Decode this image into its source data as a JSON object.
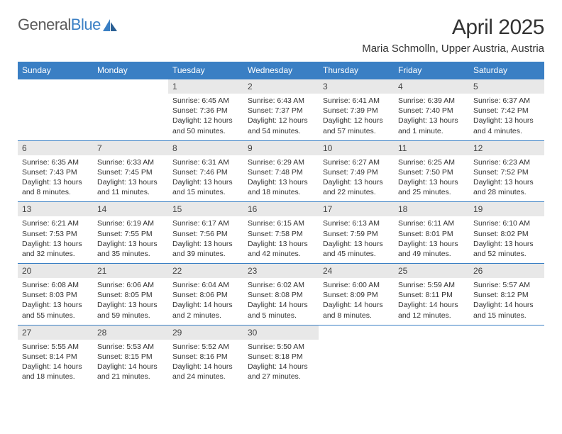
{
  "logo": {
    "text1": "General",
    "text2": "Blue"
  },
  "title": "April 2025",
  "location": "Maria Schmolln, Upper Austria, Austria",
  "colors": {
    "header_bg": "#3a7fc4",
    "header_text": "#ffffff",
    "daynum_bg": "#e8e8e8",
    "border": "#3a7fc4",
    "text": "#333333",
    "logo_gray": "#5a5a5a",
    "logo_blue": "#3a7fc4"
  },
  "weekdays": [
    "Sunday",
    "Monday",
    "Tuesday",
    "Wednesday",
    "Thursday",
    "Friday",
    "Saturday"
  ],
  "weeks": [
    [
      null,
      null,
      {
        "d": "1",
        "sr": "Sunrise: 6:45 AM",
        "ss": "Sunset: 7:36 PM",
        "dl1": "Daylight: 12 hours",
        "dl2": "and 50 minutes."
      },
      {
        "d": "2",
        "sr": "Sunrise: 6:43 AM",
        "ss": "Sunset: 7:37 PM",
        "dl1": "Daylight: 12 hours",
        "dl2": "and 54 minutes."
      },
      {
        "d": "3",
        "sr": "Sunrise: 6:41 AM",
        "ss": "Sunset: 7:39 PM",
        "dl1": "Daylight: 12 hours",
        "dl2": "and 57 minutes."
      },
      {
        "d": "4",
        "sr": "Sunrise: 6:39 AM",
        "ss": "Sunset: 7:40 PM",
        "dl1": "Daylight: 13 hours",
        "dl2": "and 1 minute."
      },
      {
        "d": "5",
        "sr": "Sunrise: 6:37 AM",
        "ss": "Sunset: 7:42 PM",
        "dl1": "Daylight: 13 hours",
        "dl2": "and 4 minutes."
      }
    ],
    [
      {
        "d": "6",
        "sr": "Sunrise: 6:35 AM",
        "ss": "Sunset: 7:43 PM",
        "dl1": "Daylight: 13 hours",
        "dl2": "and 8 minutes."
      },
      {
        "d": "7",
        "sr": "Sunrise: 6:33 AM",
        "ss": "Sunset: 7:45 PM",
        "dl1": "Daylight: 13 hours",
        "dl2": "and 11 minutes."
      },
      {
        "d": "8",
        "sr": "Sunrise: 6:31 AM",
        "ss": "Sunset: 7:46 PM",
        "dl1": "Daylight: 13 hours",
        "dl2": "and 15 minutes."
      },
      {
        "d": "9",
        "sr": "Sunrise: 6:29 AM",
        "ss": "Sunset: 7:48 PM",
        "dl1": "Daylight: 13 hours",
        "dl2": "and 18 minutes."
      },
      {
        "d": "10",
        "sr": "Sunrise: 6:27 AM",
        "ss": "Sunset: 7:49 PM",
        "dl1": "Daylight: 13 hours",
        "dl2": "and 22 minutes."
      },
      {
        "d": "11",
        "sr": "Sunrise: 6:25 AM",
        "ss": "Sunset: 7:50 PM",
        "dl1": "Daylight: 13 hours",
        "dl2": "and 25 minutes."
      },
      {
        "d": "12",
        "sr": "Sunrise: 6:23 AM",
        "ss": "Sunset: 7:52 PM",
        "dl1": "Daylight: 13 hours",
        "dl2": "and 28 minutes."
      }
    ],
    [
      {
        "d": "13",
        "sr": "Sunrise: 6:21 AM",
        "ss": "Sunset: 7:53 PM",
        "dl1": "Daylight: 13 hours",
        "dl2": "and 32 minutes."
      },
      {
        "d": "14",
        "sr": "Sunrise: 6:19 AM",
        "ss": "Sunset: 7:55 PM",
        "dl1": "Daylight: 13 hours",
        "dl2": "and 35 minutes."
      },
      {
        "d": "15",
        "sr": "Sunrise: 6:17 AM",
        "ss": "Sunset: 7:56 PM",
        "dl1": "Daylight: 13 hours",
        "dl2": "and 39 minutes."
      },
      {
        "d": "16",
        "sr": "Sunrise: 6:15 AM",
        "ss": "Sunset: 7:58 PM",
        "dl1": "Daylight: 13 hours",
        "dl2": "and 42 minutes."
      },
      {
        "d": "17",
        "sr": "Sunrise: 6:13 AM",
        "ss": "Sunset: 7:59 PM",
        "dl1": "Daylight: 13 hours",
        "dl2": "and 45 minutes."
      },
      {
        "d": "18",
        "sr": "Sunrise: 6:11 AM",
        "ss": "Sunset: 8:01 PM",
        "dl1": "Daylight: 13 hours",
        "dl2": "and 49 minutes."
      },
      {
        "d": "19",
        "sr": "Sunrise: 6:10 AM",
        "ss": "Sunset: 8:02 PM",
        "dl1": "Daylight: 13 hours",
        "dl2": "and 52 minutes."
      }
    ],
    [
      {
        "d": "20",
        "sr": "Sunrise: 6:08 AM",
        "ss": "Sunset: 8:03 PM",
        "dl1": "Daylight: 13 hours",
        "dl2": "and 55 minutes."
      },
      {
        "d": "21",
        "sr": "Sunrise: 6:06 AM",
        "ss": "Sunset: 8:05 PM",
        "dl1": "Daylight: 13 hours",
        "dl2": "and 59 minutes."
      },
      {
        "d": "22",
        "sr": "Sunrise: 6:04 AM",
        "ss": "Sunset: 8:06 PM",
        "dl1": "Daylight: 14 hours",
        "dl2": "and 2 minutes."
      },
      {
        "d": "23",
        "sr": "Sunrise: 6:02 AM",
        "ss": "Sunset: 8:08 PM",
        "dl1": "Daylight: 14 hours",
        "dl2": "and 5 minutes."
      },
      {
        "d": "24",
        "sr": "Sunrise: 6:00 AM",
        "ss": "Sunset: 8:09 PM",
        "dl1": "Daylight: 14 hours",
        "dl2": "and 8 minutes."
      },
      {
        "d": "25",
        "sr": "Sunrise: 5:59 AM",
        "ss": "Sunset: 8:11 PM",
        "dl1": "Daylight: 14 hours",
        "dl2": "and 12 minutes."
      },
      {
        "d": "26",
        "sr": "Sunrise: 5:57 AM",
        "ss": "Sunset: 8:12 PM",
        "dl1": "Daylight: 14 hours",
        "dl2": "and 15 minutes."
      }
    ],
    [
      {
        "d": "27",
        "sr": "Sunrise: 5:55 AM",
        "ss": "Sunset: 8:14 PM",
        "dl1": "Daylight: 14 hours",
        "dl2": "and 18 minutes."
      },
      {
        "d": "28",
        "sr": "Sunrise: 5:53 AM",
        "ss": "Sunset: 8:15 PM",
        "dl1": "Daylight: 14 hours",
        "dl2": "and 21 minutes."
      },
      {
        "d": "29",
        "sr": "Sunrise: 5:52 AM",
        "ss": "Sunset: 8:16 PM",
        "dl1": "Daylight: 14 hours",
        "dl2": "and 24 minutes."
      },
      {
        "d": "30",
        "sr": "Sunrise: 5:50 AM",
        "ss": "Sunset: 8:18 PM",
        "dl1": "Daylight: 14 hours",
        "dl2": "and 27 minutes."
      },
      null,
      null,
      null
    ]
  ]
}
